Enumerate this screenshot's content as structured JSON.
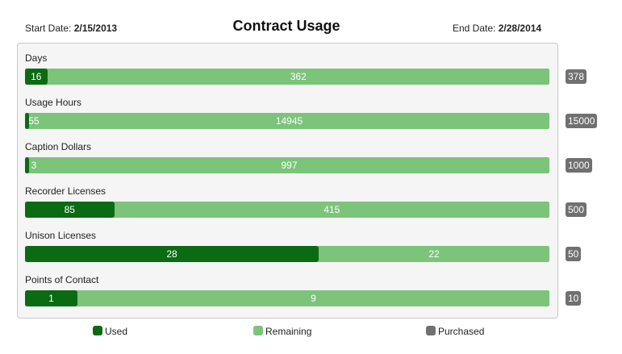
{
  "header": {
    "start_label": "Start Date:",
    "start_date": "2/15/2013",
    "title": "Contract Usage",
    "end_label": "End Date:",
    "end_date": "2/28/2014"
  },
  "metrics": [
    {
      "label": "Days",
      "used": 16,
      "remaining": 362,
      "purchased": 378
    },
    {
      "label": "Usage Hours",
      "used": 55,
      "remaining": 14945,
      "purchased": 15000
    },
    {
      "label": "Caption Dollars",
      "used": 3,
      "remaining": 997,
      "purchased": 1000
    },
    {
      "label": "Recorder Licenses",
      "used": 85,
      "remaining": 415,
      "purchased": 500
    },
    {
      "label": "Unison Licenses",
      "used": 28,
      "remaining": 22,
      "purchased": 50
    },
    {
      "label": "Points of Contact",
      "used": 1,
      "remaining": 9,
      "purchased": 10
    }
  ],
  "legend": {
    "used": "Used",
    "remaining": "Remaining",
    "purchased": "Purchased"
  },
  "colors": {
    "used": "#0b6b12",
    "remaining": "#7bc47a",
    "purchased": "#707070"
  }
}
